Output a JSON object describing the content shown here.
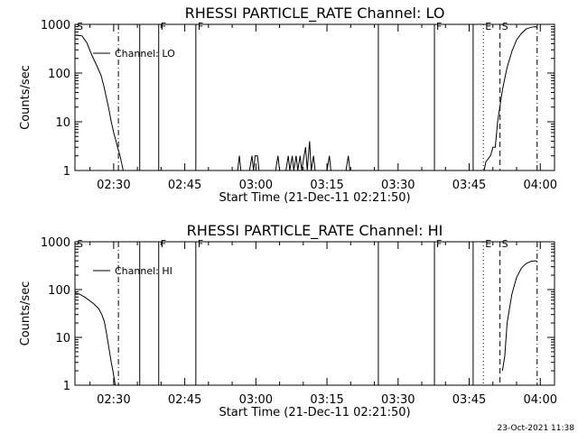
{
  "timestamp": "23-Oct-2021 11:38",
  "chart_data": [
    {
      "type": "line",
      "title": "RHESSI PARTICLE_RATE Channel: LO",
      "xlabel": "Start Time (21-Dec-11 02:21:50)",
      "ylabel": "Counts/sec",
      "yscale": "log",
      "ylim": [
        1,
        1000
      ],
      "xlim": [
        "02:21:50",
        "04:03:00"
      ],
      "x_ticks": [
        "02:30",
        "02:45",
        "03:00",
        "03:15",
        "03:30",
        "03:45",
        "04:00"
      ],
      "y_ticks": [
        "1",
        "10",
        "100",
        "1000"
      ],
      "legend": {
        "label": "Channel: LO",
        "position": "top-left"
      },
      "series": [
        {
          "name": "Channel: LO",
          "segments": [
            [
              [
                "02:21:50",
                600
              ],
              [
                "02:23:20",
                580
              ],
              [
                "02:24:20",
                420
              ],
              [
                "02:25:20",
                240
              ],
              [
                "02:26:20",
                150
              ],
              [
                "02:27:20",
                90
              ],
              [
                "02:27:55",
                55
              ],
              [
                "02:28:30",
                30
              ],
              [
                "02:29:00",
                18
              ],
              [
                "02:29:30",
                10
              ],
              [
                "02:30:00",
                6
              ],
              [
                "02:30:30",
                4
              ],
              [
                "02:30:50",
                3
              ],
              [
                "02:31:20",
                2
              ],
              [
                "02:31:50",
                1.2
              ],
              [
                "02:32:00",
                1
              ]
            ],
            [
              [
                "02:56:10",
                1
              ],
              [
                "02:56:30",
                2
              ],
              [
                "02:56:50",
                1
              ]
            ],
            [
              [
                "02:58:40",
                1
              ],
              [
                "02:59:10",
                2
              ],
              [
                "02:59:30",
                1
              ],
              [
                "02:59:50",
                2
              ],
              [
                "03:00:20",
                2
              ],
              [
                "03:00:40",
                1
              ]
            ],
            [
              [
                "03:04:10",
                1
              ],
              [
                "03:04:40",
                2
              ],
              [
                "03:05:00",
                1
              ]
            ],
            [
              [
                "03:06:20",
                1
              ],
              [
                "03:06:50",
                2
              ],
              [
                "03:07:10",
                1
              ],
              [
                "03:07:40",
                2
              ],
              [
                "03:08:00",
                1
              ],
              [
                "03:08:30",
                2
              ],
              [
                "03:08:50",
                1
              ],
              [
                "03:09:20",
                2
              ],
              [
                "03:09:40",
                1
              ],
              [
                "03:10:10",
                2
              ],
              [
                "03:10:30",
                3
              ],
              [
                "03:10:50",
                1
              ],
              [
                "03:11:20",
                4
              ],
              [
                "03:11:40",
                1
              ],
              [
                "03:12:10",
                2
              ],
              [
                "03:12:30",
                1
              ]
            ],
            [
              [
                "03:15:00",
                1
              ],
              [
                "03:15:30",
                2
              ],
              [
                "03:15:50",
                1
              ]
            ],
            [
              [
                "03:19:00",
                1
              ],
              [
                "03:19:30",
                2
              ],
              [
                "03:19:50",
                1
              ]
            ],
            [
              [
                "03:48:10",
                1
              ],
              [
                "03:48:30",
                1.5
              ],
              [
                "03:49:30",
                2
              ],
              [
                "03:50:00",
                3
              ],
              [
                "03:50:30",
                3
              ],
              [
                "03:51:00",
                10
              ],
              [
                "03:52:00",
                45
              ],
              [
                "03:53:00",
                130
              ],
              [
                "03:54:00",
                280
              ],
              [
                "03:55:00",
                480
              ],
              [
                "03:56:00",
                650
              ],
              [
                "03:57:00",
                800
              ],
              [
                "03:58:00",
                870
              ],
              [
                "03:59:00",
                900
              ],
              [
                "03:59:20",
                850
              ]
            ]
          ]
        }
      ],
      "markers": [
        {
          "label": "S",
          "time": "02:21:50",
          "style": "solid"
        },
        {
          "label": "",
          "time": "02:31:00",
          "style": "dashdot"
        },
        {
          "label": "",
          "time": "02:35:30",
          "style": "solid"
        },
        {
          "label": "F",
          "time": "02:39:30",
          "style": "solid"
        },
        {
          "label": "F",
          "time": "02:47:20",
          "style": "solid"
        },
        {
          "label": "",
          "time": "03:25:50",
          "style": "solid"
        },
        {
          "label": "F",
          "time": "03:37:40",
          "style": "solid"
        },
        {
          "label": "",
          "time": "03:45:50",
          "style": "solid"
        },
        {
          "label": "E",
          "time": "03:48:00",
          "style": "dotted"
        },
        {
          "label": "S",
          "time": "03:51:30",
          "style": "dashed"
        },
        {
          "label": "",
          "time": "03:59:20",
          "style": "dashdot"
        }
      ]
    },
    {
      "type": "line",
      "title": "RHESSI PARTICLE_RATE Channel: HI",
      "xlabel": "Start Time (21-Dec-11 02:21:50)",
      "ylabel": "Counts/sec",
      "yscale": "log",
      "ylim": [
        1,
        1000
      ],
      "xlim": [
        "02:21:50",
        "04:03:00"
      ],
      "x_ticks": [
        "02:30",
        "02:45",
        "03:00",
        "03:15",
        "03:30",
        "03:45",
        "04:00"
      ],
      "y_ticks": [
        "1",
        "10",
        "100",
        "1000"
      ],
      "legend": {
        "label": "Channel: HI",
        "position": "top-left"
      },
      "series": [
        {
          "name": "Channel: HI",
          "segments": [
            [
              [
                "02:21:50",
                85
              ],
              [
                "02:22:50",
                80
              ],
              [
                "02:23:50",
                70
              ],
              [
                "02:24:50",
                60
              ],
              [
                "02:25:50",
                50
              ],
              [
                "02:26:50",
                40
              ],
              [
                "02:27:30",
                30
              ],
              [
                "02:28:00",
                22
              ],
              [
                "02:28:30",
                12
              ],
              [
                "02:29:00",
                6
              ],
              [
                "02:29:30",
                3
              ],
              [
                "02:29:50",
                2
              ],
              [
                "02:30:10",
                1.3
              ],
              [
                "02:30:20",
                1
              ]
            ],
            [
              [
                "03:52:00",
                2
              ],
              [
                "03:52:30",
                4
              ],
              [
                "03:53:00",
                20
              ],
              [
                "03:54:00",
                80
              ],
              [
                "03:55:00",
                180
              ],
              [
                "03:56:00",
                280
              ],
              [
                "03:57:00",
                350
              ],
              [
                "03:58:00",
                390
              ],
              [
                "03:59:00",
                400
              ],
              [
                "03:59:20",
                390
              ]
            ]
          ]
        }
      ],
      "markers": [
        {
          "label": "S",
          "time": "02:21:50",
          "style": "solid"
        },
        {
          "label": "",
          "time": "02:31:00",
          "style": "dashdot"
        },
        {
          "label": "",
          "time": "02:35:30",
          "style": "solid"
        },
        {
          "label": "F",
          "time": "02:39:30",
          "style": "solid"
        },
        {
          "label": "F",
          "time": "02:47:20",
          "style": "solid"
        },
        {
          "label": "",
          "time": "03:25:50",
          "style": "solid"
        },
        {
          "label": "F",
          "time": "03:37:40",
          "style": "solid"
        },
        {
          "label": "",
          "time": "03:45:50",
          "style": "solid"
        },
        {
          "label": "E",
          "time": "03:48:00",
          "style": "dotted"
        },
        {
          "label": "S",
          "time": "03:51:30",
          "style": "dashed"
        },
        {
          "label": "",
          "time": "03:59:20",
          "style": "dashdot"
        }
      ]
    }
  ]
}
